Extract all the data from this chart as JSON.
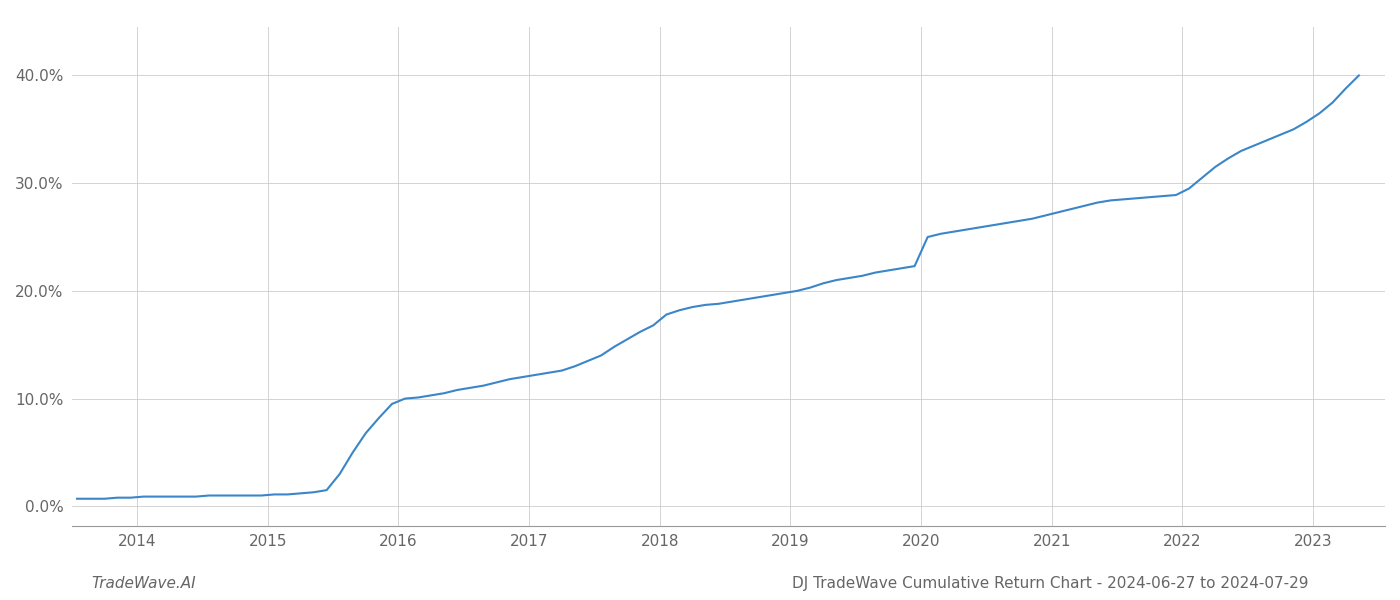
{
  "x_values": [
    2013.54,
    2013.65,
    2013.75,
    2013.85,
    2013.95,
    2014.05,
    2014.15,
    2014.25,
    2014.35,
    2014.45,
    2014.55,
    2014.65,
    2014.75,
    2014.85,
    2014.95,
    2015.05,
    2015.15,
    2015.25,
    2015.35,
    2015.45,
    2015.55,
    2015.65,
    2015.75,
    2015.85,
    2015.95,
    2016.05,
    2016.15,
    2016.25,
    2016.35,
    2016.45,
    2016.55,
    2016.65,
    2016.75,
    2016.85,
    2016.95,
    2017.05,
    2017.15,
    2017.25,
    2017.35,
    2017.45,
    2017.55,
    2017.65,
    2017.75,
    2017.85,
    2017.95,
    2018.05,
    2018.15,
    2018.25,
    2018.35,
    2018.45,
    2018.55,
    2018.65,
    2018.75,
    2018.85,
    2018.95,
    2019.05,
    2019.15,
    2019.25,
    2019.35,
    2019.45,
    2019.55,
    2019.65,
    2019.75,
    2019.85,
    2019.95,
    2020.05,
    2020.15,
    2020.25,
    2020.35,
    2020.45,
    2020.55,
    2020.65,
    2020.75,
    2020.85,
    2020.95,
    2021.05,
    2021.15,
    2021.25,
    2021.35,
    2021.45,
    2021.55,
    2021.65,
    2021.75,
    2021.85,
    2021.95,
    2022.05,
    2022.15,
    2022.25,
    2022.35,
    2022.45,
    2022.55,
    2022.65,
    2022.75,
    2022.85,
    2022.95,
    2023.05,
    2023.15,
    2023.25,
    2023.35
  ],
  "y_values": [
    0.007,
    0.007,
    0.007,
    0.008,
    0.008,
    0.009,
    0.009,
    0.009,
    0.009,
    0.009,
    0.01,
    0.01,
    0.01,
    0.01,
    0.01,
    0.011,
    0.011,
    0.012,
    0.013,
    0.015,
    0.03,
    0.05,
    0.068,
    0.082,
    0.095,
    0.1,
    0.101,
    0.103,
    0.105,
    0.108,
    0.11,
    0.112,
    0.115,
    0.118,
    0.12,
    0.122,
    0.124,
    0.126,
    0.13,
    0.135,
    0.14,
    0.148,
    0.155,
    0.162,
    0.168,
    0.178,
    0.182,
    0.185,
    0.187,
    0.188,
    0.19,
    0.192,
    0.194,
    0.196,
    0.198,
    0.2,
    0.203,
    0.207,
    0.21,
    0.212,
    0.214,
    0.217,
    0.219,
    0.221,
    0.223,
    0.25,
    0.253,
    0.255,
    0.257,
    0.259,
    0.261,
    0.263,
    0.265,
    0.267,
    0.27,
    0.273,
    0.276,
    0.279,
    0.282,
    0.284,
    0.285,
    0.286,
    0.287,
    0.288,
    0.289,
    0.295,
    0.305,
    0.315,
    0.323,
    0.33,
    0.335,
    0.34,
    0.345,
    0.35,
    0.357,
    0.365,
    0.375,
    0.388,
    0.4
  ],
  "line_color": "#3a86c8",
  "line_width": 1.5,
  "xlim": [
    2013.5,
    2023.55
  ],
  "ylim": [
    -0.018,
    0.445
  ],
  "xticks": [
    2014,
    2015,
    2016,
    2017,
    2018,
    2019,
    2020,
    2021,
    2022,
    2023
  ],
  "yticks": [
    0.0,
    0.1,
    0.2,
    0.3,
    0.4
  ],
  "ytick_labels": [
    "0.0%",
    "10.0%",
    "20.0%",
    "30.0%",
    "40.0%"
  ],
  "grid_color": "#cccccc",
  "grid_linewidth": 0.6,
  "background_color": "#ffffff",
  "bottom_label_left": "TradeWave.AI",
  "bottom_label_right": "DJ TradeWave Cumulative Return Chart - 2024-06-27 to 2024-07-29",
  "tick_fontsize": 11,
  "label_fontsize": 11,
  "spine_color": "#999999"
}
